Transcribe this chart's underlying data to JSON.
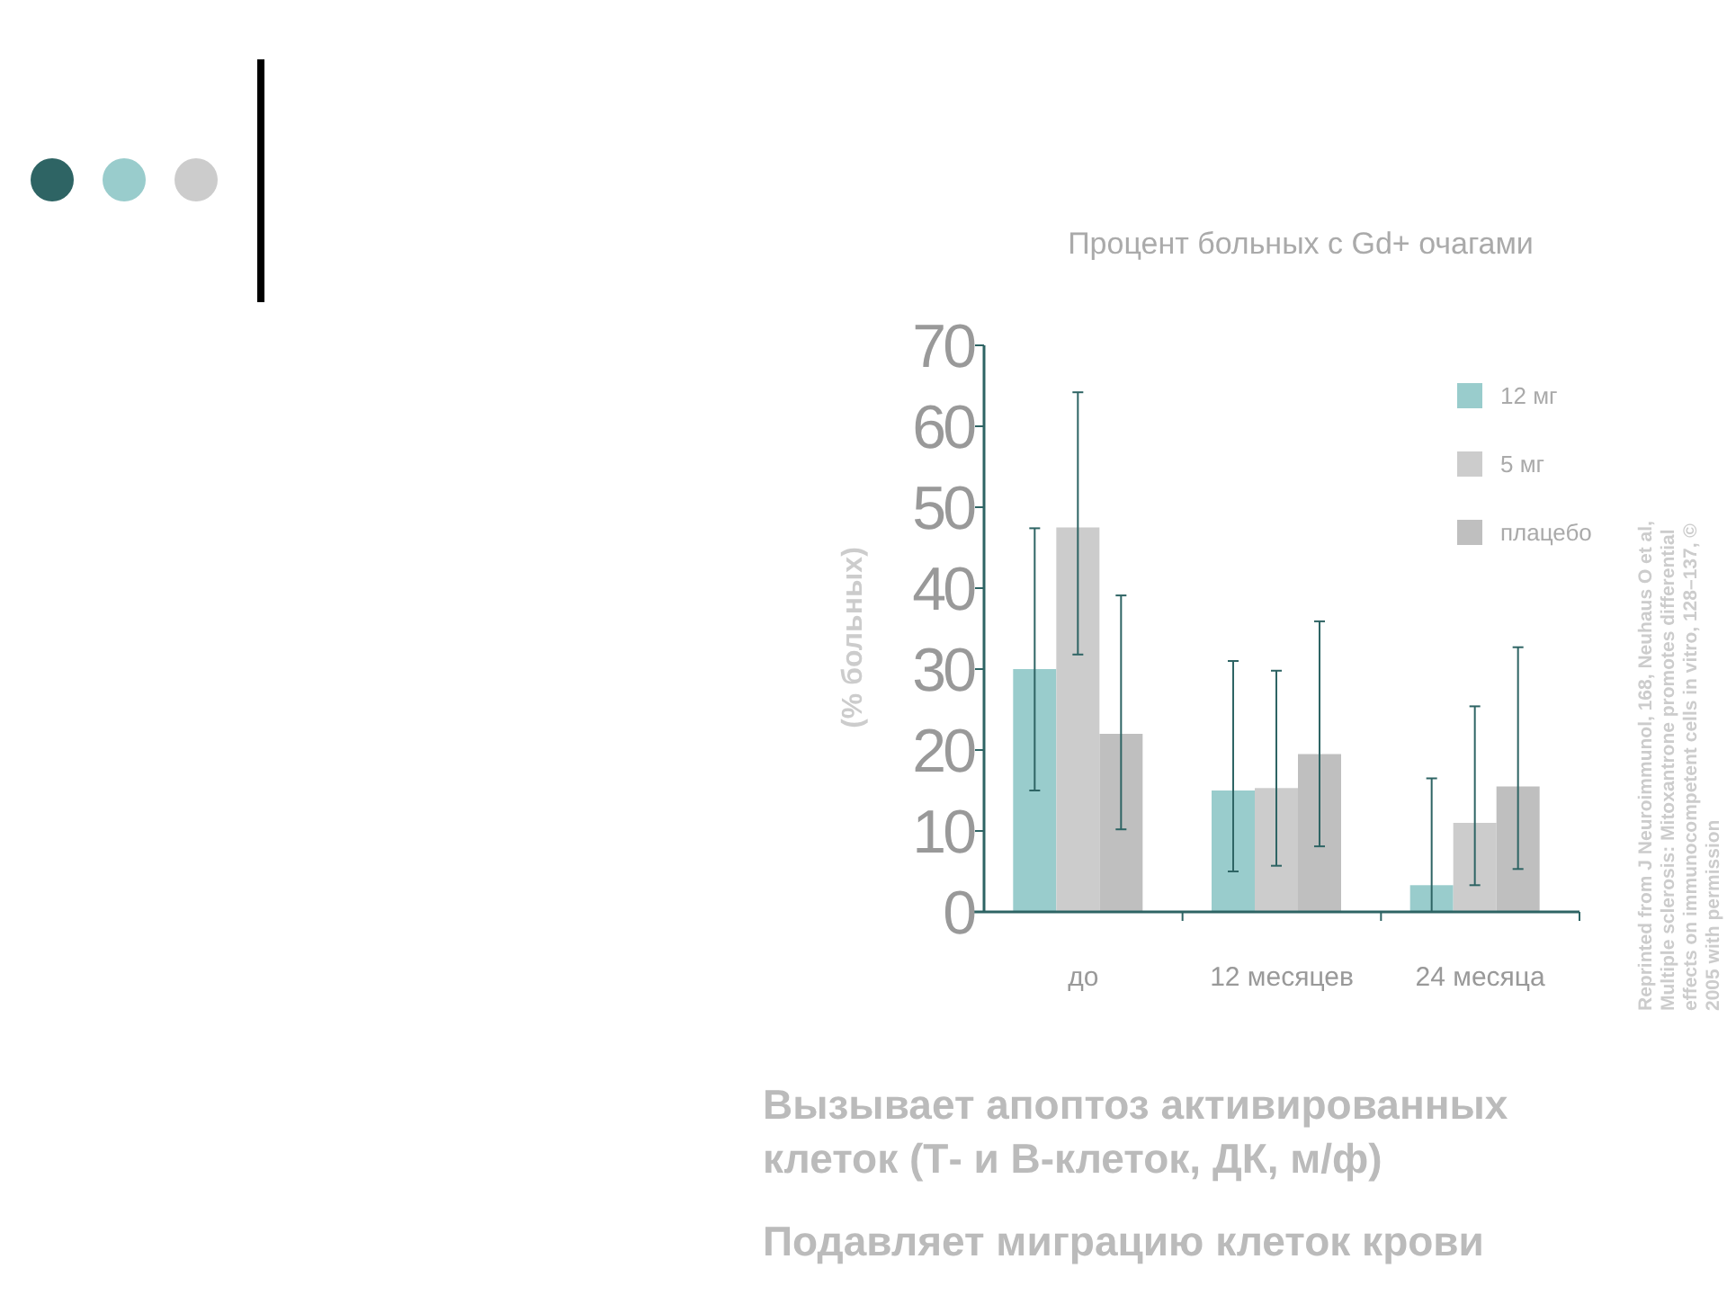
{
  "chart_data": {
    "type": "bar",
    "title": "Процент больных с Gd+ очагами",
    "ylabel": "(% больных)",
    "categories": [
      "до",
      "12 месяцев",
      "24 месяца"
    ],
    "series": [
      {
        "name": "12 мг",
        "color": "#99cccc",
        "values": [
          30,
          15,
          3.3
        ],
        "errors": [
          [
            15,
            47.4
          ],
          [
            5,
            31
          ],
          [
            0,
            16.5
          ]
        ]
      },
      {
        "name": "5 мг",
        "color": "#cccccc",
        "values": [
          47.5,
          15.3,
          11
        ],
        "errors": [
          [
            31.8,
            64.2
          ],
          [
            5.7,
            29.8
          ],
          [
            3.3,
            25.4
          ]
        ]
      },
      {
        "name": "плацебо",
        "color": "#bfbfbf",
        "values": [
          22,
          19.5,
          15.5
        ],
        "errors": [
          [
            10.2,
            39.1
          ],
          [
            8.1,
            35.9
          ],
          [
            5.3,
            32.7
          ]
        ]
      }
    ],
    "ylim": [
      0,
      70
    ],
    "yticks": [
      0,
      10,
      20,
      30,
      40,
      50,
      60,
      70
    ],
    "legend": "top right",
    "annotations": [
      "Reprinted from J Neuroimmunol, 168, Neuhaus O et al,\nMultiple sclerosis: Mitoxantrone promotes differential\neffects on immunocompetent cells in vitro, 128–137, ©\n2005 with permission",
      "Вызывает апоптоз активированных\nклеток (Т-  и В-клеток, ДК, м/ф)",
      "Подавляет миграцию клеток крови"
    ]
  }
}
